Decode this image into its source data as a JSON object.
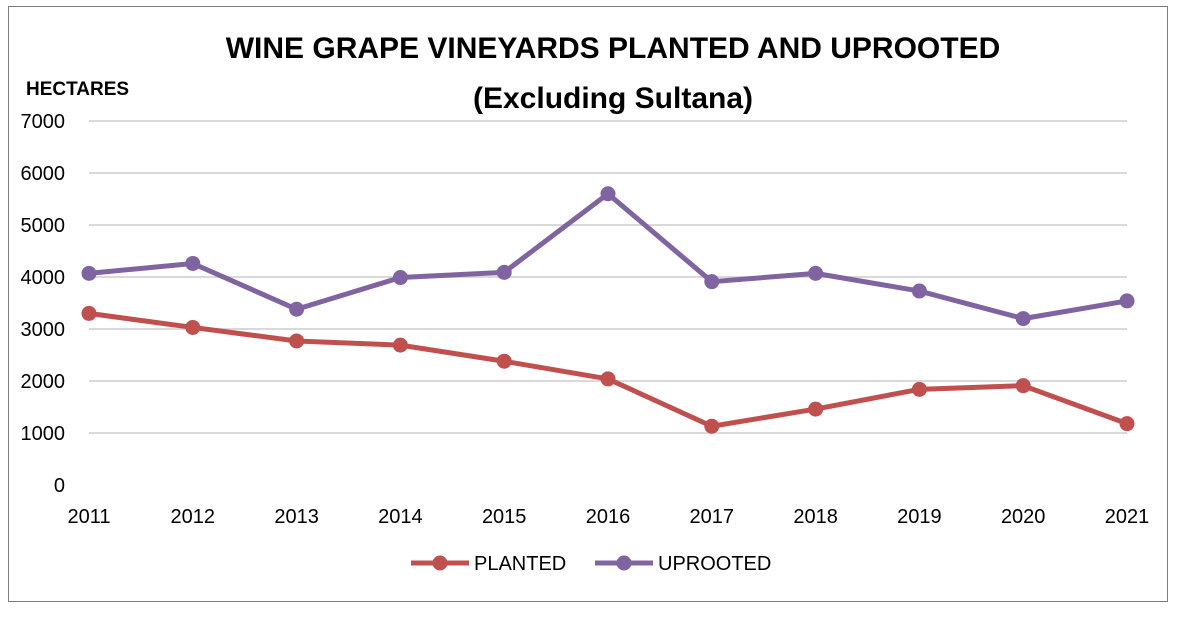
{
  "chart_data": {
    "type": "line",
    "title": "WINE GRAPE VINEYARDS PLANTED AND UPROOTED",
    "subtitle": "(Excluding Sultana)",
    "ylabel": "HECTARES",
    "xlabel": "",
    "ylim": [
      0,
      7000
    ],
    "yticks": [
      "0",
      "1000",
      "2000",
      "3000",
      "4000",
      "5000",
      "6000",
      "7000"
    ],
    "categories": [
      "2011",
      "2012",
      "2013",
      "2014",
      "2015",
      "2016",
      "2017",
      "2018",
      "2019",
      "2020",
      "2021"
    ],
    "grid": true,
    "legend_position": "bottom",
    "series": [
      {
        "name": "PLANTED",
        "color": "#c0504d",
        "values": [
          3300,
          3030,
          2770,
          2690,
          2380,
          2040,
          1130,
          1460,
          1840,
          1910,
          1180
        ]
      },
      {
        "name": "UPROOTED",
        "color": "#8064a2",
        "values": [
          4070,
          4260,
          3380,
          3990,
          4090,
          5600,
          3910,
          4070,
          3730,
          3200,
          3540
        ]
      }
    ]
  }
}
